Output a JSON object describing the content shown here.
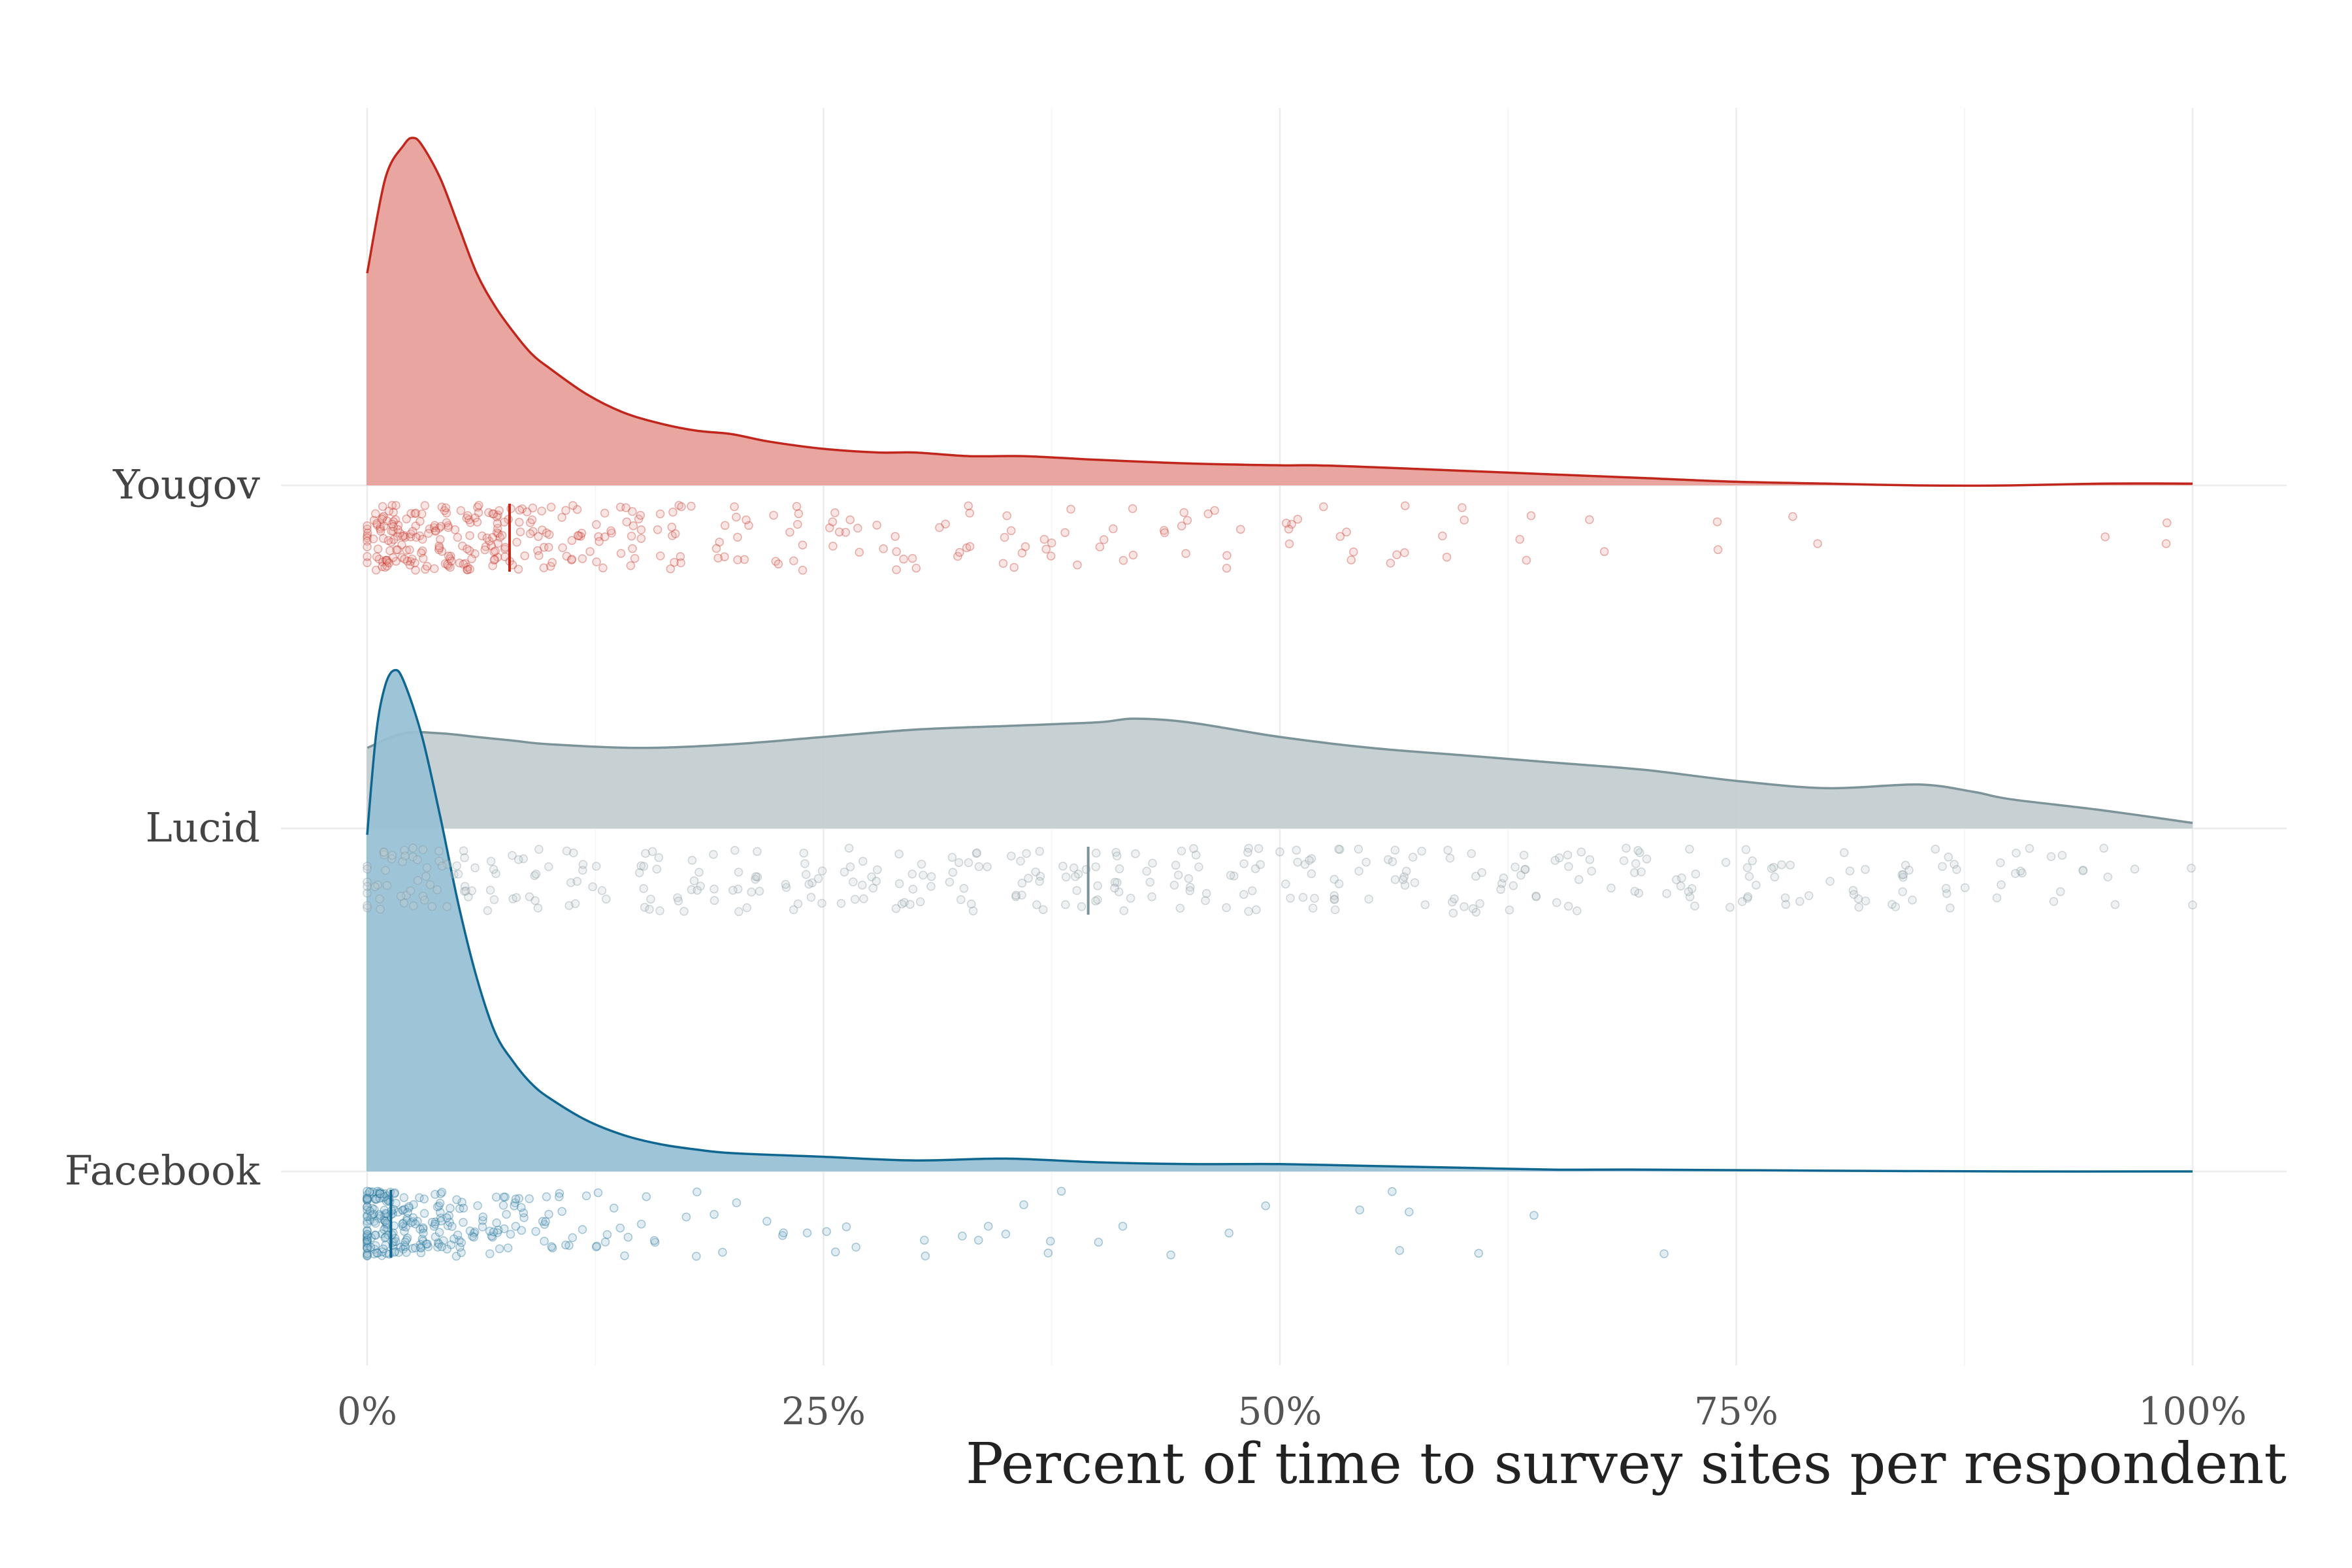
{
  "chart_data": {
    "type": "raincloud",
    "title": "",
    "xlabel": "Percent of time to survey sites per respondent",
    "ylabel": "",
    "xlim": [
      -0.05,
      1.05
    ],
    "x_ticks": [
      0,
      0.25,
      0.5,
      0.75,
      1.0
    ],
    "x_tick_labels": [
      "0%",
      "25%",
      "50%",
      "75%",
      "100%"
    ],
    "grid": true,
    "legend": "none",
    "categories": [
      "Yougov",
      "Lucid",
      "Facebook"
    ],
    "series": [
      {
        "name": "Yougov",
        "color": "#c0261b",
        "fill": "#e8a19c",
        "median": 0.078,
        "density": {
          "x": [
            0,
            0.01,
            0.02,
            0.025,
            0.03,
            0.04,
            0.05,
            0.06,
            0.07,
            0.08,
            0.09,
            0.1,
            0.12,
            0.14,
            0.16,
            0.18,
            0.2,
            0.22,
            0.25,
            0.28,
            0.3,
            0.33,
            0.36,
            0.4,
            0.45,
            0.5,
            0.52,
            0.55,
            0.6,
            0.65,
            0.7,
            0.75,
            0.8,
            0.85,
            0.9,
            0.95,
            1.0
          ],
          "y": [
            0.58,
            0.84,
            0.93,
            0.95,
            0.93,
            0.84,
            0.71,
            0.58,
            0.49,
            0.42,
            0.36,
            0.32,
            0.25,
            0.2,
            0.17,
            0.15,
            0.14,
            0.12,
            0.1,
            0.09,
            0.09,
            0.08,
            0.08,
            0.07,
            0.06,
            0.055,
            0.055,
            0.05,
            0.04,
            0.03,
            0.02,
            0.01,
            0.005,
            0.0,
            0.0,
            0.005,
            0.005
          ]
        },
        "points": [
          {
            "x": 0.002,
            "n": 18
          },
          {
            "x": 0.01,
            "n": 30
          },
          {
            "x": 0.02,
            "n": 30
          },
          {
            "x": 0.035,
            "n": 30
          },
          {
            "x": 0.05,
            "n": 30
          },
          {
            "x": 0.065,
            "n": 30
          },
          {
            "x": 0.08,
            "n": 22
          },
          {
            "x": 0.1,
            "n": 20
          },
          {
            "x": 0.12,
            "n": 18
          },
          {
            "x": 0.14,
            "n": 16
          },
          {
            "x": 0.17,
            "n": 14
          },
          {
            "x": 0.2,
            "n": 12
          },
          {
            "x": 0.23,
            "n": 10
          },
          {
            "x": 0.26,
            "n": 9
          },
          {
            "x": 0.29,
            "n": 8
          },
          {
            "x": 0.32,
            "n": 8
          },
          {
            "x": 0.35,
            "n": 7
          },
          {
            "x": 0.38,
            "n": 7
          },
          {
            "x": 0.41,
            "n": 6
          },
          {
            "x": 0.44,
            "n": 6
          },
          {
            "x": 0.47,
            "n": 5
          },
          {
            "x": 0.5,
            "n": 5
          },
          {
            "x": 0.53,
            "n": 5
          },
          {
            "x": 0.56,
            "n": 4
          },
          {
            "x": 0.6,
            "n": 4
          },
          {
            "x": 0.64,
            "n": 3
          },
          {
            "x": 0.68,
            "n": 2
          },
          {
            "x": 0.74,
            "n": 2
          },
          {
            "x": 0.78,
            "n": 1
          },
          {
            "x": 0.8,
            "n": 1
          },
          {
            "x": 0.95,
            "n": 1
          },
          {
            "x": 0.99,
            "n": 2
          }
        ]
      },
      {
        "name": "Lucid",
        "color": "#7d939a",
        "fill": "#c4ced1",
        "median": 0.395,
        "density": {
          "x": [
            0,
            0.02,
            0.04,
            0.06,
            0.08,
            0.1,
            0.15,
            0.2,
            0.25,
            0.3,
            0.35,
            0.4,
            0.42,
            0.45,
            0.5,
            0.55,
            0.6,
            0.65,
            0.7,
            0.75,
            0.8,
            0.85,
            0.88,
            0.9,
            0.95,
            1.0
          ],
          "y": [
            0.22,
            0.26,
            0.26,
            0.25,
            0.24,
            0.23,
            0.22,
            0.23,
            0.25,
            0.27,
            0.28,
            0.29,
            0.3,
            0.29,
            0.25,
            0.22,
            0.2,
            0.18,
            0.16,
            0.13,
            0.11,
            0.12,
            0.1,
            0.08,
            0.05,
            0.015
          ]
        },
        "points": [
          {
            "x": 0.005,
            "n": 14
          },
          {
            "x": 0.02,
            "n": 16
          },
          {
            "x": 0.04,
            "n": 16
          },
          {
            "x": 0.06,
            "n": 14
          },
          {
            "x": 0.09,
            "n": 12
          },
          {
            "x": 0.12,
            "n": 12
          },
          {
            "x": 0.15,
            "n": 12
          },
          {
            "x": 0.18,
            "n": 12
          },
          {
            "x": 0.21,
            "n": 12
          },
          {
            "x": 0.24,
            "n": 13
          },
          {
            "x": 0.27,
            "n": 13
          },
          {
            "x": 0.3,
            "n": 13
          },
          {
            "x": 0.33,
            "n": 13
          },
          {
            "x": 0.36,
            "n": 14
          },
          {
            "x": 0.39,
            "n": 14
          },
          {
            "x": 0.42,
            "n": 14
          },
          {
            "x": 0.45,
            "n": 13
          },
          {
            "x": 0.48,
            "n": 13
          },
          {
            "x": 0.51,
            "n": 12
          },
          {
            "x": 0.54,
            "n": 12
          },
          {
            "x": 0.57,
            "n": 12
          },
          {
            "x": 0.6,
            "n": 12
          },
          {
            "x": 0.63,
            "n": 12
          },
          {
            "x": 0.66,
            "n": 11
          },
          {
            "x": 0.69,
            "n": 11
          },
          {
            "x": 0.72,
            "n": 10
          },
          {
            "x": 0.75,
            "n": 10
          },
          {
            "x": 0.78,
            "n": 9
          },
          {
            "x": 0.81,
            "n": 9
          },
          {
            "x": 0.84,
            "n": 9
          },
          {
            "x": 0.87,
            "n": 9
          },
          {
            "x": 0.9,
            "n": 8
          },
          {
            "x": 0.93,
            "n": 6
          },
          {
            "x": 0.96,
            "n": 4
          },
          {
            "x": 0.99,
            "n": 2
          }
        ]
      },
      {
        "name": "Facebook",
        "color": "#0f6690",
        "fill": "#96c0d4",
        "median": 0.013,
        "density": {
          "x": [
            0,
            0.005,
            0.01,
            0.015,
            0.02,
            0.03,
            0.04,
            0.05,
            0.06,
            0.07,
            0.08,
            0.09,
            0.1,
            0.12,
            0.14,
            0.16,
            0.18,
            0.2,
            0.25,
            0.3,
            0.35,
            0.4,
            0.45,
            0.5,
            0.55,
            0.6,
            0.65,
            0.7,
            0.8,
            0.9,
            1.0
          ],
          "y": [
            0.92,
            1.2,
            1.33,
            1.37,
            1.34,
            1.19,
            0.97,
            0.73,
            0.53,
            0.38,
            0.3,
            0.24,
            0.2,
            0.14,
            0.1,
            0.075,
            0.06,
            0.05,
            0.04,
            0.03,
            0.035,
            0.025,
            0.02,
            0.02,
            0.015,
            0.01,
            0.005,
            0.005,
            0.002,
            0.0,
            0.0
          ]
        },
        "points": [
          {
            "x": 0.001,
            "n": 40
          },
          {
            "x": 0.005,
            "n": 40
          },
          {
            "x": 0.01,
            "n": 35
          },
          {
            "x": 0.02,
            "n": 30
          },
          {
            "x": 0.03,
            "n": 25
          },
          {
            "x": 0.04,
            "n": 20
          },
          {
            "x": 0.05,
            "n": 16
          },
          {
            "x": 0.06,
            "n": 13
          },
          {
            "x": 0.07,
            "n": 11
          },
          {
            "x": 0.08,
            "n": 9
          },
          {
            "x": 0.09,
            "n": 8
          },
          {
            "x": 0.1,
            "n": 7
          },
          {
            "x": 0.11,
            "n": 6
          },
          {
            "x": 0.12,
            "n": 5
          },
          {
            "x": 0.14,
            "n": 5
          },
          {
            "x": 0.16,
            "n": 4
          },
          {
            "x": 0.18,
            "n": 3
          },
          {
            "x": 0.2,
            "n": 3
          },
          {
            "x": 0.23,
            "n": 3
          },
          {
            "x": 0.25,
            "n": 3
          },
          {
            "x": 0.27,
            "n": 2
          },
          {
            "x": 0.3,
            "n": 2
          },
          {
            "x": 0.33,
            "n": 2
          },
          {
            "x": 0.35,
            "n": 3
          },
          {
            "x": 0.37,
            "n": 2
          },
          {
            "x": 0.39,
            "n": 2
          },
          {
            "x": 0.42,
            "n": 1
          },
          {
            "x": 0.44,
            "n": 1
          },
          {
            "x": 0.47,
            "n": 1
          },
          {
            "x": 0.5,
            "n": 1
          },
          {
            "x": 0.55,
            "n": 1
          },
          {
            "x": 0.56,
            "n": 2
          },
          {
            "x": 0.58,
            "n": 1
          },
          {
            "x": 0.61,
            "n": 1
          },
          {
            "x": 0.64,
            "n": 1
          },
          {
            "x": 0.72,
            "n": 1
          }
        ]
      }
    ]
  }
}
